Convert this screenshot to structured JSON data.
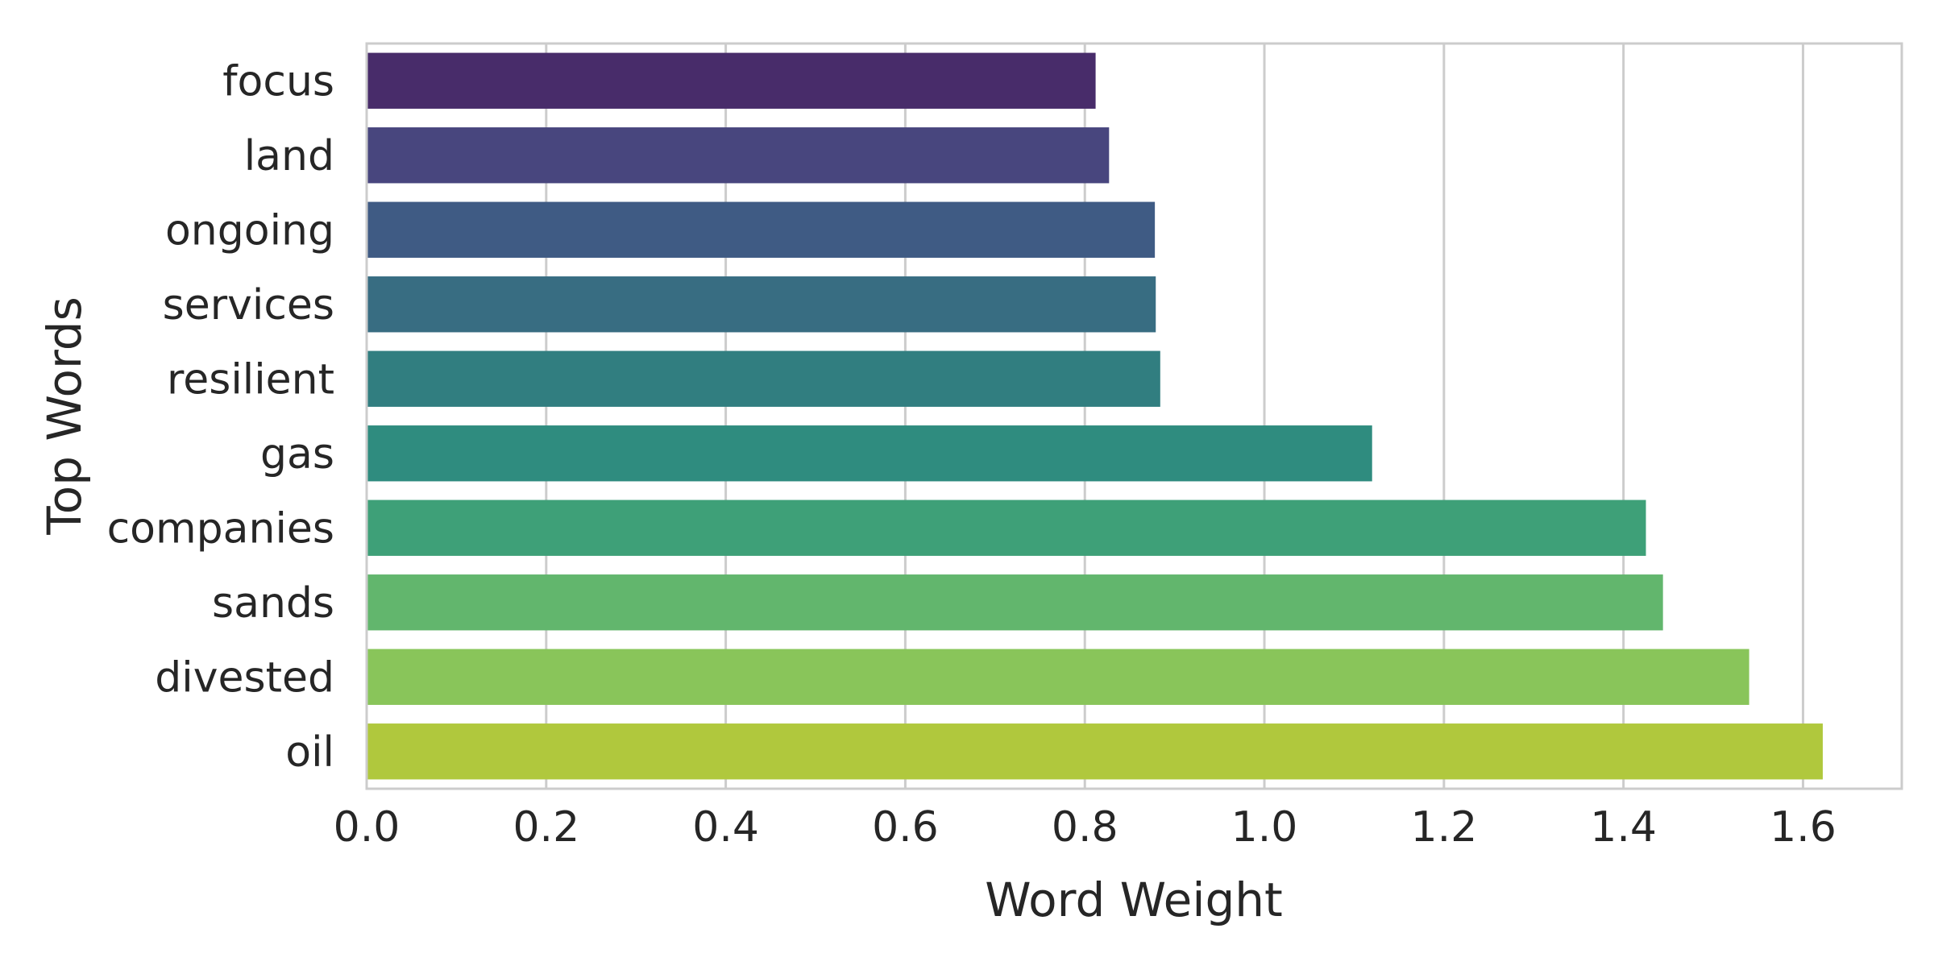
{
  "chart_data": {
    "type": "bar",
    "orientation": "horizontal",
    "xlabel": "Word Weight",
    "ylabel": "Top Words",
    "categories": [
      "focus",
      "land",
      "ongoing",
      "services",
      "resilient",
      "gas",
      "companies",
      "sands",
      "divested",
      "oil"
    ],
    "values": [
      0.812,
      0.827,
      0.878,
      0.879,
      0.884,
      1.12,
      1.425,
      1.444,
      1.54,
      1.622
    ],
    "xlim": [
      0.0,
      1.71
    ],
    "xticks": [
      0.0,
      0.2,
      0.4,
      0.6,
      0.8,
      1.0,
      1.2,
      1.4,
      1.6
    ],
    "xtick_labels": [
      "0.0",
      "0.2",
      "0.4",
      "0.6",
      "0.8",
      "1.0",
      "1.2",
      "1.4",
      "1.6"
    ],
    "grid": "vertical",
    "palette": "viridis",
    "colors": [
      "#482c6a",
      "#48467e",
      "#3f5b84",
      "#386d82",
      "#317e80",
      "#2f8c7f",
      "#3ea078",
      "#62b66d",
      "#89c55a",
      "#b0c83d"
    ],
    "grid_color": "#cccccc",
    "spine_color": "#cccccc"
  }
}
